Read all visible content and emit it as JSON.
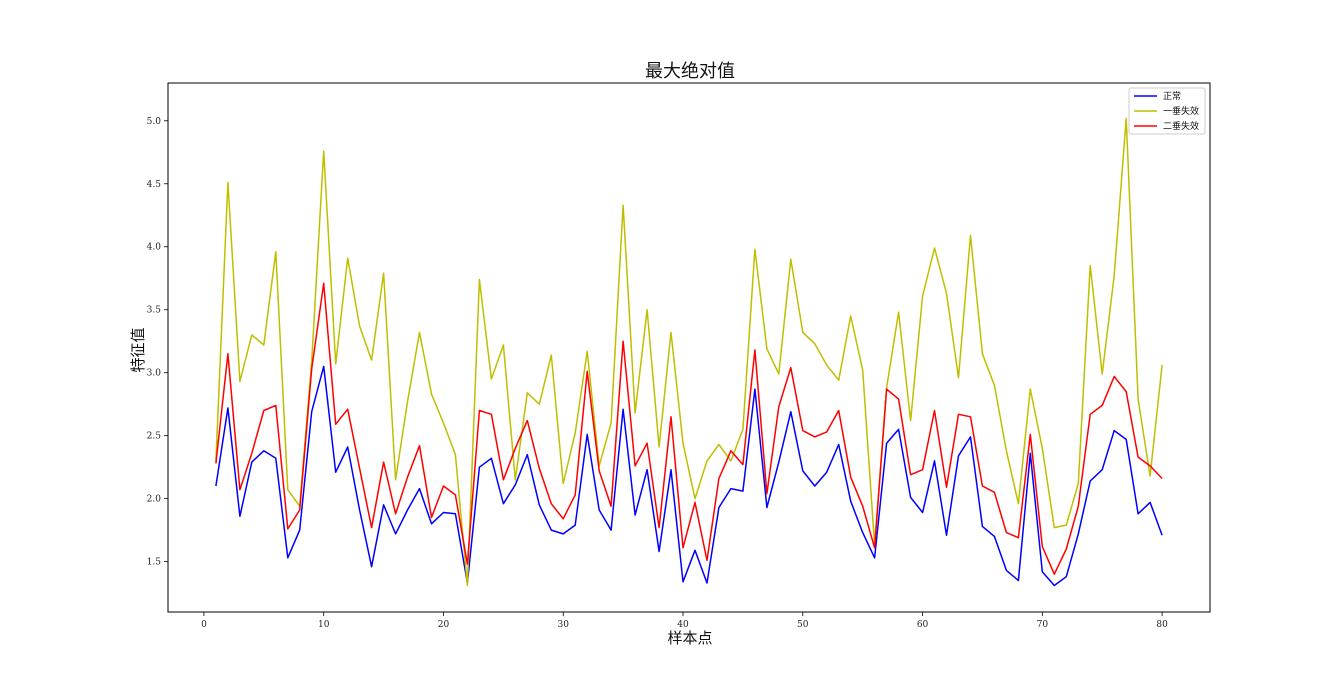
{
  "chart_data": {
    "type": "line",
    "title": "最大绝对值",
    "xlabel": "样本点",
    "ylabel": "特征值",
    "xlim": [
      -3,
      84
    ],
    "ylim": [
      1.1,
      5.3
    ],
    "xticks": [
      0,
      10,
      20,
      30,
      40,
      50,
      60,
      70,
      80
    ],
    "xtick_labels": [
      "0",
      "10",
      "20",
      "30",
      "40",
      "50",
      "60",
      "70",
      "80"
    ],
    "yticks": [
      1.5,
      2.0,
      2.5,
      3.0,
      3.5,
      4.0,
      4.5,
      5.0
    ],
    "ytick_labels": [
      "1.5",
      "2.0",
      "2.5",
      "3.0",
      "3.5",
      "4.0",
      "4.5",
      "5.0"
    ],
    "grid": false,
    "legend_position": "top-right",
    "x": [
      1,
      2,
      3,
      4,
      5,
      6,
      7,
      8,
      9,
      10,
      11,
      12,
      13,
      14,
      15,
      16,
      17,
      18,
      19,
      20,
      21,
      22,
      23,
      24,
      25,
      26,
      27,
      28,
      29,
      30,
      31,
      32,
      33,
      34,
      35,
      36,
      37,
      38,
      39,
      40,
      41,
      42,
      43,
      44,
      45,
      46,
      47,
      48,
      49,
      50,
      51,
      52,
      53,
      54,
      55,
      56,
      57,
      58,
      59,
      60,
      61,
      62,
      63,
      64,
      65,
      66,
      67,
      68,
      69,
      70,
      71,
      72,
      73,
      74,
      75,
      76,
      77,
      78,
      79,
      80
    ],
    "series": [
      {
        "name": "正常",
        "color": "#0000ff",
        "values": [
          2.1,
          2.72,
          1.86,
          2.29,
          2.38,
          2.32,
          1.53,
          1.75,
          2.69,
          3.05,
          2.21,
          2.41,
          1.91,
          1.46,
          1.95,
          1.72,
          1.91,
          2.08,
          1.8,
          1.89,
          1.88,
          1.33,
          2.25,
          2.32,
          1.96,
          2.11,
          2.35,
          1.95,
          1.75,
          1.72,
          1.79,
          2.51,
          1.91,
          1.75,
          2.71,
          1.87,
          2.23,
          1.58,
          2.23,
          1.34,
          1.59,
          1.33,
          1.93,
          2.08,
          2.06,
          2.87,
          1.93,
          2.29,
          2.69,
          2.22,
          2.1,
          2.21,
          2.43,
          1.98,
          1.73,
          1.53,
          2.44,
          2.55,
          2.01,
          1.89,
          2.3,
          1.71,
          2.34,
          2.49,
          1.78,
          1.7,
          1.43,
          1.35,
          2.36,
          1.42,
          1.31,
          1.38,
          1.72,
          2.14,
          2.23,
          2.54,
          2.47,
          1.88,
          1.97,
          1.71
        ]
      },
      {
        "name": "一垂失效",
        "color": "#bfbf00",
        "values": [
          2.3,
          4.51,
          2.93,
          3.3,
          3.22,
          3.96,
          2.07,
          1.94,
          3.09,
          4.76,
          3.07,
          3.91,
          3.37,
          3.1,
          3.79,
          2.15,
          2.77,
          3.32,
          2.83,
          2.6,
          2.35,
          1.31,
          3.74,
          2.95,
          3.22,
          2.15,
          2.84,
          2.75,
          3.14,
          2.12,
          2.52,
          3.17,
          2.26,
          2.6,
          4.33,
          2.68,
          3.5,
          2.41,
          3.32,
          2.44,
          2.0,
          2.3,
          2.43,
          2.3,
          2.55,
          3.98,
          3.19,
          2.99,
          3.9,
          3.32,
          3.23,
          3.06,
          2.94,
          3.45,
          3.02,
          1.63,
          2.88,
          3.48,
          2.62,
          3.61,
          3.99,
          3.63,
          2.96,
          4.09,
          3.15,
          2.9,
          2.38,
          1.96,
          2.87,
          2.4,
          1.77,
          1.79,
          2.12,
          3.85,
          2.99,
          3.77,
          5.02,
          2.79,
          2.18,
          3.06
        ]
      },
      {
        "name": "二垂失效",
        "color": "#ff0000",
        "values": [
          2.28,
          3.15,
          2.07,
          2.36,
          2.7,
          2.74,
          1.76,
          1.91,
          3.03,
          3.71,
          2.59,
          2.71,
          2.24,
          1.77,
          2.29,
          1.88,
          2.17,
          2.42,
          1.85,
          2.1,
          2.03,
          1.48,
          2.7,
          2.67,
          2.15,
          2.4,
          2.62,
          2.24,
          1.96,
          1.84,
          2.03,
          3.01,
          2.22,
          1.94,
          3.25,
          2.26,
          2.44,
          1.77,
          2.65,
          1.61,
          1.97,
          1.51,
          2.16,
          2.38,
          2.27,
          3.18,
          2.04,
          2.73,
          3.04,
          2.54,
          2.49,
          2.53,
          2.7,
          2.17,
          1.94,
          1.61,
          2.87,
          2.79,
          2.19,
          2.23,
          2.7,
          2.09,
          2.67,
          2.65,
          2.1,
          2.05,
          1.73,
          1.69,
          2.51,
          1.62,
          1.4,
          1.6,
          1.94,
          2.67,
          2.74,
          2.97,
          2.85,
          2.33,
          2.26,
          2.16
        ]
      }
    ]
  }
}
